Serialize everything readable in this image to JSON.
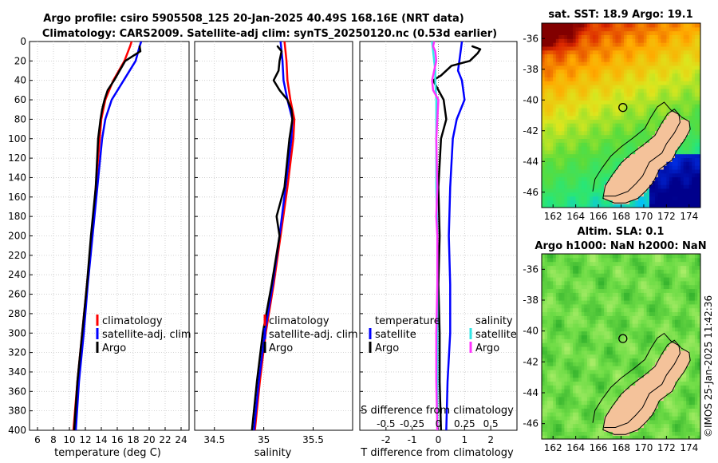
{
  "header": {
    "line1": "Argo profile: csiro 5905508_125 20-Jan-2025 40.49S 168.16E (NRT data)",
    "line2": "Climatology: CARS2009. Satellite-adj clim: synTS_20250120.nc (0.53d earlier)"
  },
  "colors": {
    "climatology": "#ff0000",
    "satellite": "#0000ff",
    "argo": "#000000",
    "sal_sat": "#33e6e6",
    "sal_argo": "#ff33ff",
    "land": "#f4c29a"
  },
  "chart_data": [
    {
      "type": "line",
      "name": "temperature-profile",
      "xlabel": "temperature (deg C)",
      "ylabel": "",
      "xlim": [
        5,
        25
      ],
      "ylim": [
        0,
        400
      ],
      "xticks": [
        "6",
        "8",
        "10",
        "12",
        "14",
        "16",
        "18",
        "20",
        "22",
        "24"
      ],
      "yticks": [
        "0",
        "20",
        "40",
        "60",
        "80",
        "100",
        "120",
        "140",
        "160",
        "180",
        "200",
        "220",
        "240",
        "260",
        "280",
        "300",
        "320",
        "340",
        "360",
        "380",
        "400"
      ],
      "legend": [
        "climatology",
        "satellite-adj. clim",
        "Argo"
      ],
      "legend_position": "bottom-right",
      "series": [
        {
          "name": "climatology",
          "depth": [
            0,
            5,
            20,
            40,
            60,
            80,
            100,
            150,
            200,
            250,
            300,
            350,
            400
          ],
          "values": [
            17.8,
            17.6,
            16.9,
            15.5,
            14.5,
            14.0,
            13.8,
            13.3,
            12.8,
            12.2,
            11.6,
            11.0,
            10.5
          ]
        },
        {
          "name": "satellite-adj. clim",
          "depth": [
            0,
            5,
            20,
            40,
            60,
            80,
            100,
            150,
            200,
            250,
            300,
            350,
            400
          ],
          "values": [
            19.0,
            18.8,
            18.3,
            16.8,
            15.3,
            14.5,
            14.1,
            13.5,
            12.9,
            12.3,
            11.8,
            11.2,
            10.8
          ]
        },
        {
          "name": "Argo",
          "depth": [
            5,
            10,
            20,
            30,
            40,
            50,
            60,
            70,
            80,
            100,
            150,
            200,
            250,
            300,
            350,
            400
          ],
          "values": [
            18.8,
            18.9,
            17.0,
            16.3,
            15.6,
            14.8,
            14.4,
            14.1,
            13.9,
            13.6,
            13.3,
            12.7,
            12.2,
            11.6,
            11.0,
            10.6
          ]
        }
      ]
    },
    {
      "type": "line",
      "name": "salinity-profile",
      "xlabel": "salinity",
      "xlim": [
        34.3,
        35.9
      ],
      "ylim": [
        0,
        400
      ],
      "xticks": [
        "34.5",
        "35",
        "35.5"
      ],
      "legend": [
        "climatology",
        "satellite-adj. clim",
        "Argo"
      ],
      "legend_position": "bottom-right",
      "series": [
        {
          "name": "climatology",
          "depth": [
            0,
            10,
            20,
            40,
            60,
            80,
            100,
            150,
            200,
            250,
            300,
            350,
            400
          ],
          "values": [
            35.21,
            35.22,
            35.23,
            35.24,
            35.27,
            35.31,
            35.3,
            35.24,
            35.17,
            35.1,
            35.02,
            34.96,
            34.91
          ]
        },
        {
          "name": "satellite-adj. clim",
          "depth": [
            0,
            10,
            20,
            40,
            60,
            80,
            100,
            150,
            200,
            250,
            300,
            350,
            400
          ],
          "values": [
            35.17,
            35.18,
            35.19,
            35.2,
            35.24,
            35.29,
            35.28,
            35.22,
            35.16,
            35.09,
            35.01,
            34.95,
            34.9
          ]
        },
        {
          "name": "Argo",
          "depth": [
            5,
            10,
            20,
            30,
            40,
            50,
            60,
            70,
            80,
            100,
            150,
            180,
            200,
            250,
            300,
            350,
            400
          ],
          "values": [
            35.14,
            35.18,
            35.16,
            35.15,
            35.1,
            35.16,
            35.24,
            35.28,
            35.29,
            35.26,
            35.21,
            35.13,
            35.16,
            35.08,
            34.99,
            34.93,
            34.88
          ]
        }
      ]
    },
    {
      "type": "line",
      "name": "difference-profile",
      "xlabel": "T difference from climatology",
      "top_label": "S difference from climatology",
      "xlim": [
        -3,
        3
      ],
      "ylim": [
        0,
        400
      ],
      "xticks": [
        "-2",
        "-1",
        "0",
        "1",
        "2"
      ],
      "top_xticks": [
        "-0.5",
        "-0.25",
        "0",
        "0.25",
        "0.5"
      ],
      "legend_temp": [
        "temperature",
        "satellite",
        "Argo"
      ],
      "legend_sal": [
        "salinity",
        "satellite",
        "Argo"
      ],
      "series": [
        {
          "name": "temperature satellite",
          "depth": [
            0,
            10,
            20,
            30,
            40,
            60,
            80,
            100,
            150,
            200,
            250,
            300,
            350,
            400
          ],
          "values": [
            0.9,
            0.85,
            0.8,
            0.75,
            0.9,
            1.0,
            0.7,
            0.55,
            0.45,
            0.4,
            0.45,
            0.45,
            0.35,
            0.3
          ]
        },
        {
          "name": "temperature Argo",
          "depth": [
            5,
            8,
            12,
            20,
            25,
            35,
            40,
            50,
            60,
            80,
            100,
            150,
            200,
            250,
            300,
            350,
            400
          ],
          "values": [
            1.3,
            1.6,
            1.5,
            1.2,
            0.5,
            0.1,
            -0.2,
            0.0,
            0.2,
            0.3,
            0.1,
            0.0,
            0.05,
            0.0,
            0.05,
            0.05,
            0.1
          ]
        },
        {
          "name": "salinity satellite",
          "depth": [
            0,
            10,
            20,
            30,
            40,
            60,
            80,
            100,
            150,
            200,
            300,
            400
          ],
          "values": [
            -0.06,
            -0.05,
            -0.04,
            -0.03,
            -0.03,
            -0.02,
            -0.02,
            -0.02,
            -0.02,
            -0.01,
            -0.01,
            -0.01
          ]
        },
        {
          "name": "salinity Argo",
          "depth": [
            0,
            5,
            10,
            20,
            30,
            40,
            50,
            60,
            80,
            100,
            150,
            180,
            200,
            250,
            300,
            350,
            400
          ],
          "values": [
            -0.04,
            -0.05,
            -0.03,
            -0.02,
            -0.04,
            -0.06,
            -0.05,
            0.0,
            -0.01,
            -0.02,
            -0.01,
            -0.02,
            -0.01,
            -0.01,
            -0.02,
            -0.02,
            -0.01
          ]
        }
      ]
    },
    {
      "type": "heatmap",
      "name": "sst-map",
      "title": "sat. SST: 18.9 Argo: 19.1",
      "xticks": [
        "162",
        "164",
        "166",
        "168",
        "170",
        "172",
        "174"
      ],
      "yticks": [
        "-36",
        "-38",
        "-40",
        "-42",
        "-44",
        "-46"
      ],
      "xlim": [
        161,
        175
      ],
      "ylim": [
        -47,
        -35
      ],
      "marker": {
        "lon": 168.16,
        "lat": -40.49
      }
    },
    {
      "type": "heatmap",
      "name": "sla-map",
      "title": "Altim. SLA: 0.1",
      "subtitle": "Argo h1000: NaN h2000: NaN",
      "xticks": [
        "162",
        "164",
        "166",
        "168",
        "170",
        "172",
        "174"
      ],
      "yticks": [
        "-36",
        "-38",
        "-40",
        "-42",
        "-44",
        "-46"
      ],
      "xlim": [
        161,
        175
      ],
      "ylim": [
        -47,
        -35
      ],
      "marker": {
        "lon": 168.16,
        "lat": -40.49
      }
    }
  ],
  "footer": {
    "timestamp": "©IMOS 25-Jan-2025 11:42:36"
  }
}
